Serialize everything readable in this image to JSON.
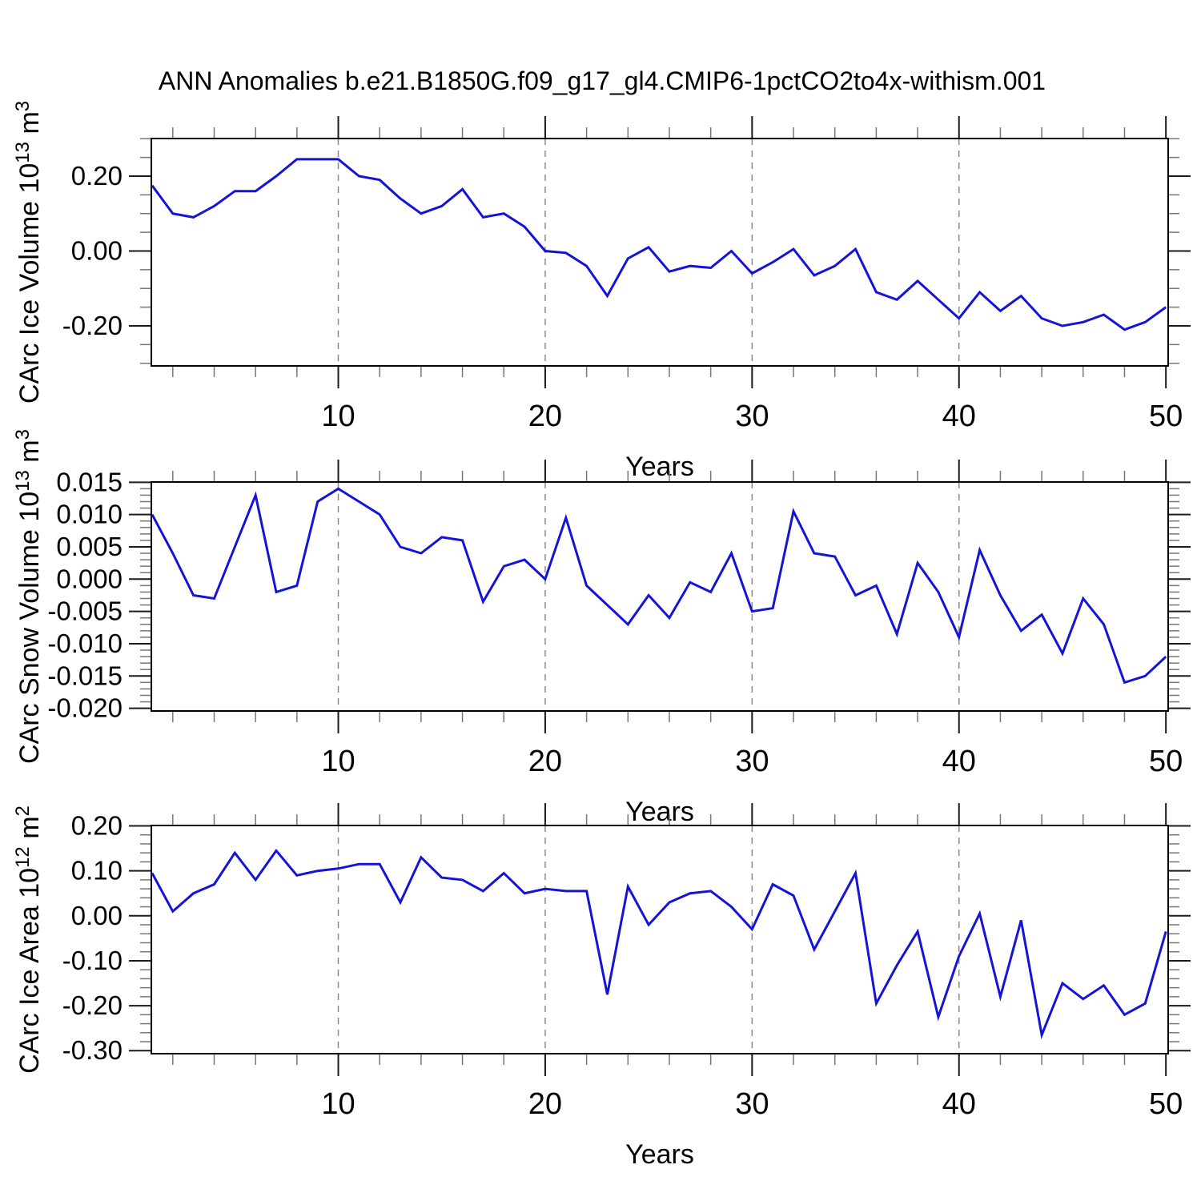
{
  "title": "ANN Anomalies b.e21.B1850G.f09_g17_gl4.CMIP6-1pctCO2to4x-withism.001",
  "colors": {
    "line": "#1414D8",
    "grid": "#8a8a8a",
    "frame": "#000000",
    "major_tick": "#1a1a1a",
    "minor_tick": "#777777"
  },
  "years": [
    1,
    2,
    3,
    4,
    5,
    6,
    7,
    8,
    9,
    10,
    11,
    12,
    13,
    14,
    15,
    16,
    17,
    18,
    19,
    20,
    21,
    22,
    23,
    24,
    25,
    26,
    27,
    28,
    29,
    30,
    31,
    32,
    33,
    34,
    35,
    36,
    37,
    38,
    39,
    40,
    41,
    42,
    43,
    44,
    45,
    46,
    47,
    48,
    49,
    50
  ],
  "chart_data": [
    {
      "type": "line",
      "xlabel": "Years",
      "ylabel": "CArc Ice Volume 10^13 m^3",
      "ylabel_parts": {
        "prefix": "CArc Ice Volume 10",
        "sup1": "13",
        "mid": " m",
        "sup2": "3"
      },
      "xticks": [
        10,
        20,
        30,
        40,
        50
      ],
      "xtick_labels": [
        "10",
        "20",
        "30",
        "40",
        "50"
      ],
      "xminor_step": 2,
      "grid_x": [
        10,
        20,
        30,
        40
      ],
      "xlim": [
        0.963,
        50.11
      ],
      "ylim": [
        -0.307,
        0.3005
      ],
      "yticks": [
        0.2,
        0.0,
        -0.2
      ],
      "ytick_labels": [
        "0.20",
        "0.00",
        "-0.20"
      ],
      "yminor_step": 0.05,
      "values": [
        0.175,
        0.1,
        0.09,
        0.12,
        0.16,
        0.16,
        0.2,
        0.245,
        0.245,
        0.245,
        0.2,
        0.19,
        0.14,
        0.1,
        0.12,
        0.165,
        0.09,
        0.1,
        0.065,
        0.0,
        -0.005,
        -0.04,
        -0.12,
        -0.02,
        0.01,
        -0.055,
        -0.04,
        -0.045,
        0.0,
        -0.06,
        -0.03,
        0.005,
        -0.065,
        -0.04,
        0.005,
        -0.11,
        -0.13,
        -0.08,
        -0.13,
        -0.18,
        -0.11,
        -0.16,
        -0.12,
        -0.18,
        -0.2,
        -0.19,
        -0.17,
        -0.21,
        -0.19,
        -0.15
      ]
    },
    {
      "type": "line",
      "xlabel": "Years",
      "ylabel": "CArc Snow Volume 10^13 m^3",
      "ylabel_parts": {
        "prefix": "CArc Snow Volume 10",
        "sup1": "13",
        "mid": " m",
        "sup2": "3"
      },
      "xticks": [
        10,
        20,
        30,
        40,
        50
      ],
      "xtick_labels": [
        "10",
        "20",
        "30",
        "40",
        "50"
      ],
      "xminor_step": 2,
      "grid_x": [
        10,
        20,
        30,
        40
      ],
      "xlim": [
        0.963,
        50.11
      ],
      "ylim": [
        -0.02042,
        0.01504
      ],
      "yticks": [
        0.015,
        0.01,
        0.005,
        0.0,
        -0.005,
        -0.01,
        -0.015,
        -0.02
      ],
      "ytick_labels": [
        "0.015",
        "0.010",
        "0.005",
        "0.000",
        "-0.005",
        "-0.010",
        "-0.015",
        "-0.020"
      ],
      "yminor_step": 0.001,
      "values": [
        0.01,
        0.004,
        -0.0025,
        -0.003,
        0.005,
        0.013,
        -0.002,
        -0.001,
        0.012,
        0.014,
        0.012,
        0.01,
        0.005,
        0.004,
        0.0065,
        0.006,
        -0.0035,
        0.002,
        0.003,
        0.0,
        0.0095,
        -0.001,
        -0.004,
        -0.007,
        -0.0025,
        -0.006,
        -0.0005,
        -0.002,
        0.004,
        -0.005,
        -0.0045,
        0.0105,
        0.004,
        0.0035,
        -0.0025,
        -0.001,
        -0.0085,
        0.0025,
        -0.002,
        -0.009,
        0.0045,
        -0.0025,
        -0.008,
        -0.0055,
        -0.0115,
        -0.003,
        -0.007,
        -0.016,
        -0.015,
        -0.012
      ]
    },
    {
      "type": "line",
      "xlabel": "Years",
      "ylabel": "CArc Ice Area 10^12 m^2",
      "ylabel_parts": {
        "prefix": "CArc Ice Area 10",
        "sup1": "12",
        "mid": " m",
        "sup2": "2"
      },
      "xticks": [
        10,
        20,
        30,
        40,
        50
      ],
      "xtick_labels": [
        "10",
        "20",
        "30",
        "40",
        "50"
      ],
      "xminor_step": 2,
      "grid_x": [
        10,
        20,
        30,
        40
      ],
      "xlim": [
        0.963,
        50.11
      ],
      "ylim": [
        -0.3067,
        0.2009
      ],
      "yticks": [
        0.2,
        0.1,
        0.0,
        -0.1,
        -0.2,
        -0.3
      ],
      "ytick_labels": [
        "0.20",
        "0.10",
        "0.00",
        "-0.10",
        "-0.20",
        "-0.30"
      ],
      "yminor_step": 0.02,
      "values": [
        0.095,
        0.01,
        0.05,
        0.07,
        0.14,
        0.08,
        0.145,
        0.09,
        0.1,
        0.105,
        0.115,
        0.115,
        0.03,
        0.13,
        0.085,
        0.08,
        0.055,
        0.095,
        0.05,
        0.06,
        0.055,
        0.055,
        -0.175,
        0.065,
        -0.02,
        0.03,
        0.05,
        0.055,
        0.02,
        -0.03,
        0.07,
        0.045,
        -0.075,
        0.01,
        0.095,
        -0.195,
        -0.11,
        -0.035,
        -0.225,
        -0.09,
        0.005,
        -0.18,
        -0.01,
        -0.265,
        -0.15,
        -0.185,
        -0.155,
        -0.22,
        -0.195,
        -0.035
      ]
    }
  ]
}
